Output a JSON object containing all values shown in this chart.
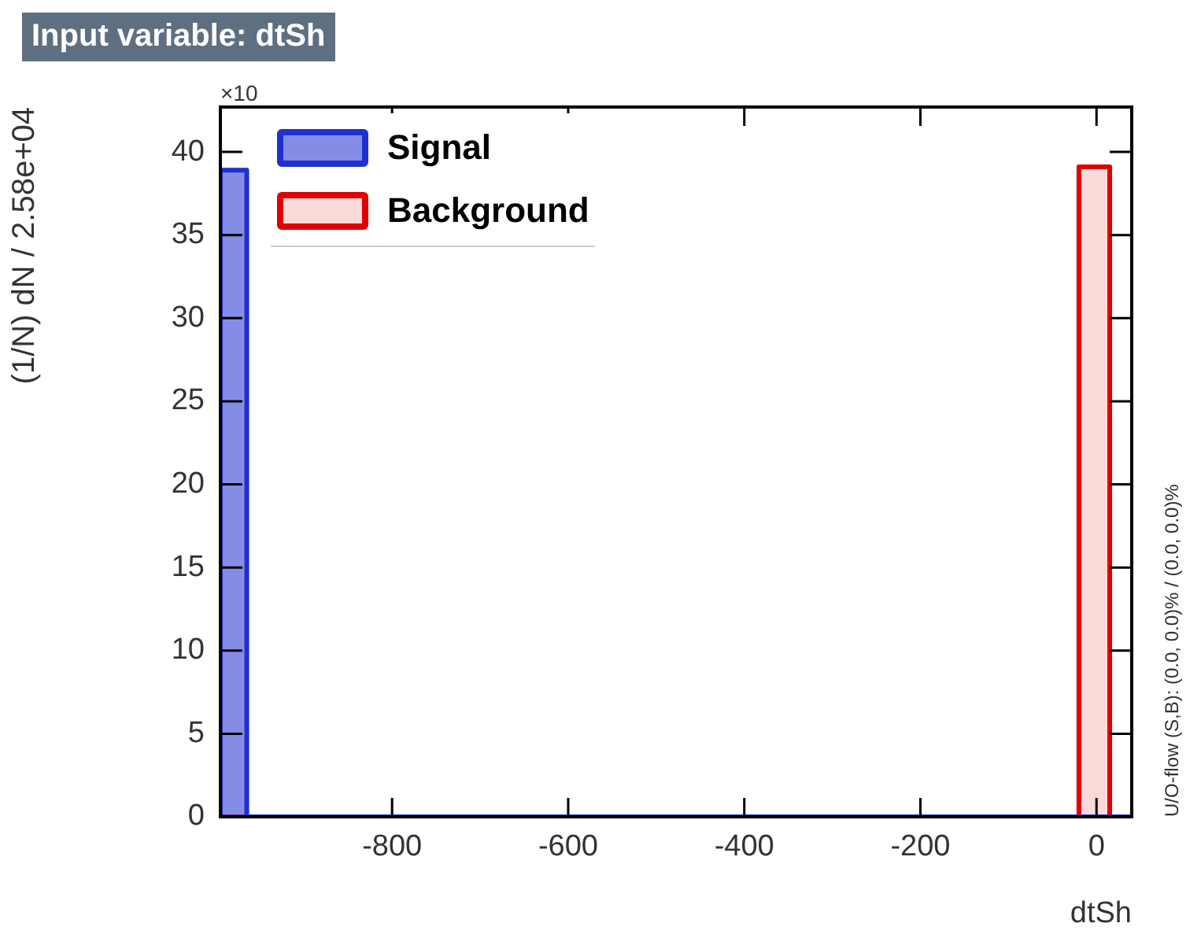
{
  "chart_data": {
    "type": "histogram",
    "title": "Input variable: dtSh",
    "xlabel": "dtSh",
    "ylabel": "(1/N) dN / 2.58e+04",
    "bins": [
      -995,
      -965,
      -20,
      15,
      40
    ],
    "series": [
      {
        "name": "Signal",
        "color": "#1f2fd0",
        "values": [
          38.9,
          0,
          0,
          0
        ]
      },
      {
        "name": "Background",
        "color": "#e00000",
        "values": [
          0,
          0,
          39.1,
          0
        ]
      }
    ],
    "xlim": [
      -995,
      40
    ],
    "xticks": [
      -800,
      -600,
      -400,
      -200,
      0
    ],
    "ylim": [
      0,
      42.7
    ],
    "yticks": [
      0,
      5,
      10,
      15,
      20,
      25,
      30,
      35,
      40
    ],
    "legend": "top left",
    "annotations": [
      "×10",
      "U/O-flow (S,B): (0.0, 0.0)% / (0.0, 0.0)%"
    ]
  }
}
